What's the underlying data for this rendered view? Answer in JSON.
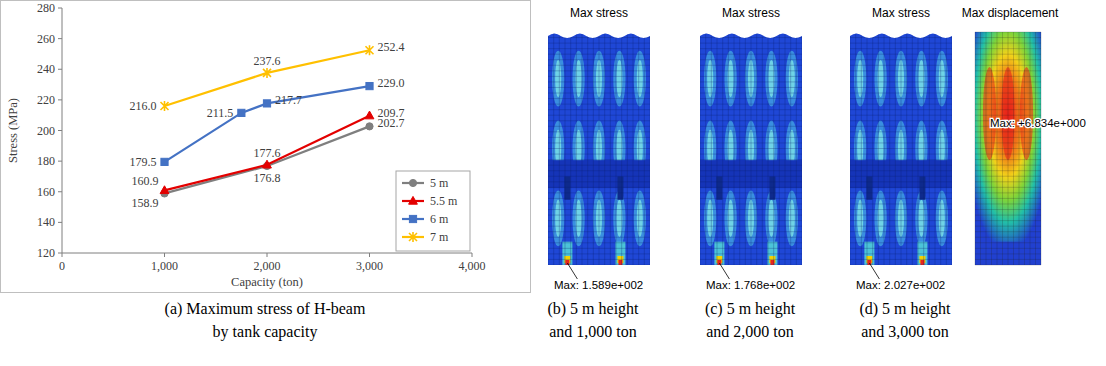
{
  "chart_data": {
    "type": "line",
    "x_label": "Capacity (ton)",
    "y_label": "Stress (MPa)",
    "xlim": [
      0,
      4000
    ],
    "xticks": [
      0,
      {
        "value": 1000,
        "label": "1,000"
      },
      {
        "value": 2000,
        "label": "2,000"
      },
      {
        "value": 3000,
        "label": "3,000"
      },
      {
        "value": 4000,
        "label": "4,000"
      }
    ],
    "ylim": [
      120,
      280
    ],
    "yticks": [
      120,
      140,
      160,
      180,
      200,
      220,
      240,
      260,
      280
    ],
    "grid": false,
    "legend": "lower right",
    "data_labels": true,
    "series": [
      {
        "name": "5 m",
        "color": "#7f7f7f",
        "marker": "circle",
        "x": [
          1000,
          2000,
          3000
        ],
        "values": [
          158.9,
          176.8,
          202.7
        ],
        "value_labels": [
          "158.9",
          "176.8",
          "202.7"
        ]
      },
      {
        "name": "5.5 m",
        "color": "#e30000",
        "marker": "triangle",
        "x": [
          1000,
          2000,
          3000
        ],
        "values": [
          160.9,
          177.6,
          209.7
        ],
        "value_labels": [
          "160.9",
          "177.6",
          "209.7"
        ]
      },
      {
        "name": "6 m",
        "color": "#4472c4",
        "marker": "square",
        "x": [
          1000,
          1750,
          2000,
          3000
        ],
        "values": [
          179.5,
          211.5,
          217.7,
          229.0
        ],
        "value_labels": [
          "179.5",
          "211.5",
          "217.7",
          "229.0"
        ]
      },
      {
        "name": "7 m",
        "color": "#ffc000",
        "marker": "star",
        "x": [
          1000,
          2000,
          3000
        ],
        "values": [
          216.0,
          237.6,
          252.4
        ],
        "value_labels": [
          "216.0",
          "237.6",
          "252.4"
        ]
      }
    ]
  },
  "chart_caption": [
    "(a) Maximum stress of H-beam",
    "by tank capacity"
  ],
  "panels": [
    {
      "header": "Max stress",
      "max_label": "Max: 1.589e+002",
      "caption": [
        "(b) 5 m height",
        "and 1,000 ton"
      ]
    },
    {
      "header": "Max stress",
      "max_label": "Max: 1.768e+002",
      "caption": [
        "(c) 5 m height",
        "and 2,000 ton"
      ]
    },
    {
      "header": "Max stress",
      "max_label": "Max: 2.027e+002",
      "caption": [
        "(d) 5 m height",
        "and 3,000 ton"
      ],
      "displacement_header": "Max displacement",
      "displacement_label": "Max: +6.834e+000"
    }
  ]
}
